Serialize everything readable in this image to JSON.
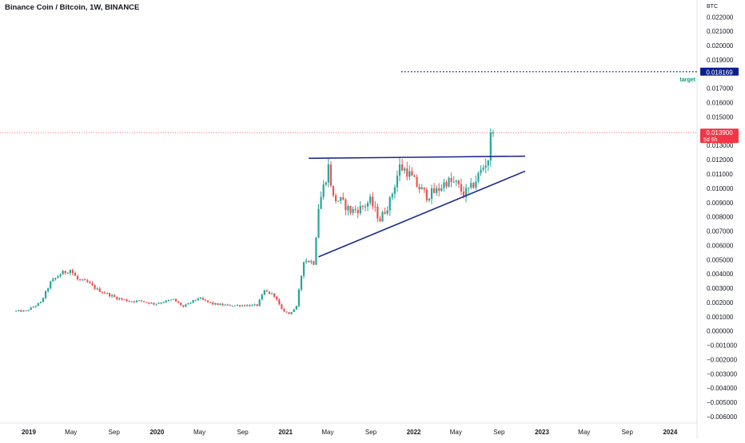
{
  "header": {
    "title": "Binance Coin / Bitcoin, 1W, BINANCE"
  },
  "colors": {
    "up": "#26a69a",
    "down": "#ef5350",
    "trendline": "#1c2a8c",
    "target_tag": "#0d1f8c",
    "price_tag": "#f23645",
    "target_label": "#089981",
    "axis_text": "#131722"
  },
  "chart_data": {
    "type": "candlestick",
    "y_unit": "BTC",
    "y_ticks": [
      "0.022000",
      "0.021000",
      "0.020000",
      "0.019000",
      "0.017000",
      "0.016000",
      "0.015000",
      "0.013000",
      "0.012000",
      "0.011000",
      "0.010000",
      "0.009000",
      "0.008000",
      "0.007000",
      "0.006000",
      "0.005000",
      "0.004000",
      "0.003000",
      "0.002000",
      "0.001000",
      "0.000000",
      "−0.001000",
      "−0.002000",
      "−0.003000",
      "−0.004000",
      "−0.005000",
      "−0.006000"
    ],
    "x_ticks": [
      "2019",
      "May",
      "Sep",
      "2020",
      "May",
      "Sep",
      "2021",
      "May",
      "Sep",
      "2022",
      "May",
      "Sep",
      "2023",
      "May",
      "Sep",
      "2024"
    ],
    "ylim": [
      -0.006,
      0.0228
    ],
    "last_price": {
      "value": 0.0139,
      "label": "0.013900",
      "countdown": "5d 6h"
    },
    "target": {
      "value": 0.018169,
      "label": "0.018169",
      "text": "target"
    },
    "trendlines": [
      {
        "name": "resistance",
        "from": [
          "2021-03-08",
          0.0121
        ],
        "to": [
          "2022-11-14",
          0.01225
        ]
      },
      {
        "name": "support",
        "from": [
          "2021-04-05",
          0.0052
        ],
        "to": [
          "2022-11-14",
          0.0112
        ]
      }
    ],
    "trend_anchors": [
      [
        "2018-11-26",
        0.0014
      ],
      [
        "2018-12-24",
        0.0014
      ],
      [
        "2019-02-04",
        0.002
      ],
      [
        "2019-03-04",
        0.0034
      ],
      [
        "2019-04-01",
        0.004
      ],
      [
        "2019-04-29",
        0.0043
      ],
      [
        "2019-05-20",
        0.0036
      ],
      [
        "2019-06-17",
        0.0034
      ],
      [
        "2019-07-15",
        0.0029
      ],
      [
        "2019-08-12",
        0.0026
      ],
      [
        "2019-09-09",
        0.0023
      ],
      [
        "2019-10-14",
        0.0021
      ],
      [
        "2019-11-18",
        0.0021
      ],
      [
        "2019-12-23",
        0.0019
      ],
      [
        "2020-02-17",
        0.0022
      ],
      [
        "2020-03-16",
        0.0017
      ],
      [
        "2020-04-27",
        0.0023
      ],
      [
        "2020-06-08",
        0.0019
      ],
      [
        "2020-07-20",
        0.0018
      ],
      [
        "2020-08-31",
        0.0018
      ],
      [
        "2020-10-12",
        0.0018
      ],
      [
        "2020-11-02",
        0.0028
      ],
      [
        "2020-11-30",
        0.0025
      ],
      [
        "2020-12-21",
        0.0015
      ],
      [
        "2021-01-11",
        0.0012
      ],
      [
        "2021-02-01",
        0.0017
      ],
      [
        "2021-02-22",
        0.005
      ],
      [
        "2021-03-22",
        0.0048
      ],
      [
        "2021-04-05",
        0.0087
      ],
      [
        "2021-04-19",
        0.0101
      ],
      [
        "2021-05-03",
        0.0115
      ],
      [
        "2021-05-17",
        0.0093
      ],
      [
        "2021-06-07",
        0.0091
      ],
      [
        "2021-07-05",
        0.0084
      ],
      [
        "2021-08-02",
        0.0086
      ],
      [
        "2021-08-30",
        0.0091
      ],
      [
        "2021-09-27",
        0.0078
      ],
      [
        "2021-10-25",
        0.0091
      ],
      [
        "2021-11-22",
        0.0115
      ],
      [
        "2021-12-13",
        0.0112
      ],
      [
        "2022-01-10",
        0.0102
      ],
      [
        "2022-02-07",
        0.0095
      ],
      [
        "2022-03-07",
        0.0098
      ],
      [
        "2022-04-04",
        0.0105
      ],
      [
        "2022-05-02",
        0.0103
      ],
      [
        "2022-05-23",
        0.0096
      ],
      [
        "2022-06-13",
        0.01
      ],
      [
        "2022-07-11",
        0.0112
      ],
      [
        "2022-08-01",
        0.0121
      ],
      [
        "2022-08-15",
        0.0139
      ]
    ]
  }
}
